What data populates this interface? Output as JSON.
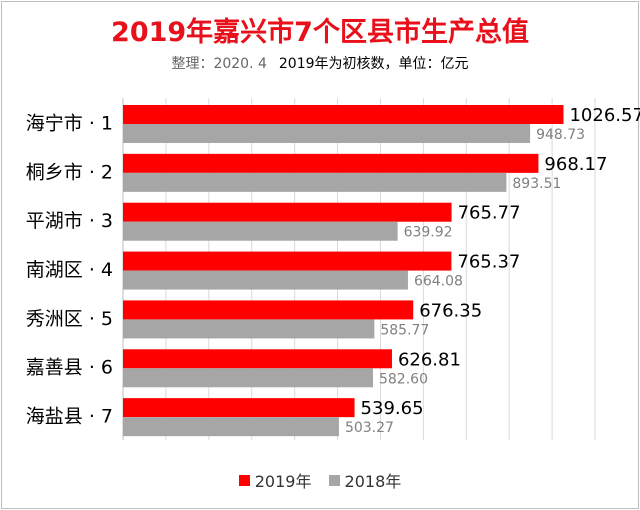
{
  "title": "2019年嘉兴市7个区县市生产总值",
  "subtitle": {
    "note": "整理：2020. 4",
    "text": "2019年为初核数，单位：亿元"
  },
  "colors": {
    "series_2019": "#ff0000",
    "series_2018": "#a6a6a6",
    "title": "#e8101a",
    "gridline": "#d9d9d9"
  },
  "legend": {
    "items": [
      "2019年",
      "2018年"
    ]
  },
  "chart_data": {
    "type": "bar",
    "orientation": "horizontal",
    "categories": [
      "海宁市 · 1",
      "桐乡市 · 2",
      "平湖市 · 3",
      "南湖区 · 4",
      "秀洲区 · 5",
      "嘉善县 · 6",
      "海盐县 · 7"
    ],
    "series": [
      {
        "name": "2019年",
        "values": [
          1026.57,
          968.17,
          765.77,
          765.37,
          676.35,
          626.81,
          539.65
        ],
        "labels": [
          "1026.57",
          "968.17",
          "765.77",
          "765.37",
          "676.35",
          "626.81",
          "539.65"
        ]
      },
      {
        "name": "2018年",
        "values": [
          948.73,
          893.51,
          639.92,
          664.08,
          585.77,
          582.6,
          503.27
        ],
        "labels": [
          "948.73",
          "893.51",
          "639.92",
          "664.08",
          "585.77",
          "582.60",
          "503.27"
        ]
      }
    ],
    "xlim": [
      0,
      1100
    ],
    "grid": true,
    "legend_position": "bottom"
  }
}
